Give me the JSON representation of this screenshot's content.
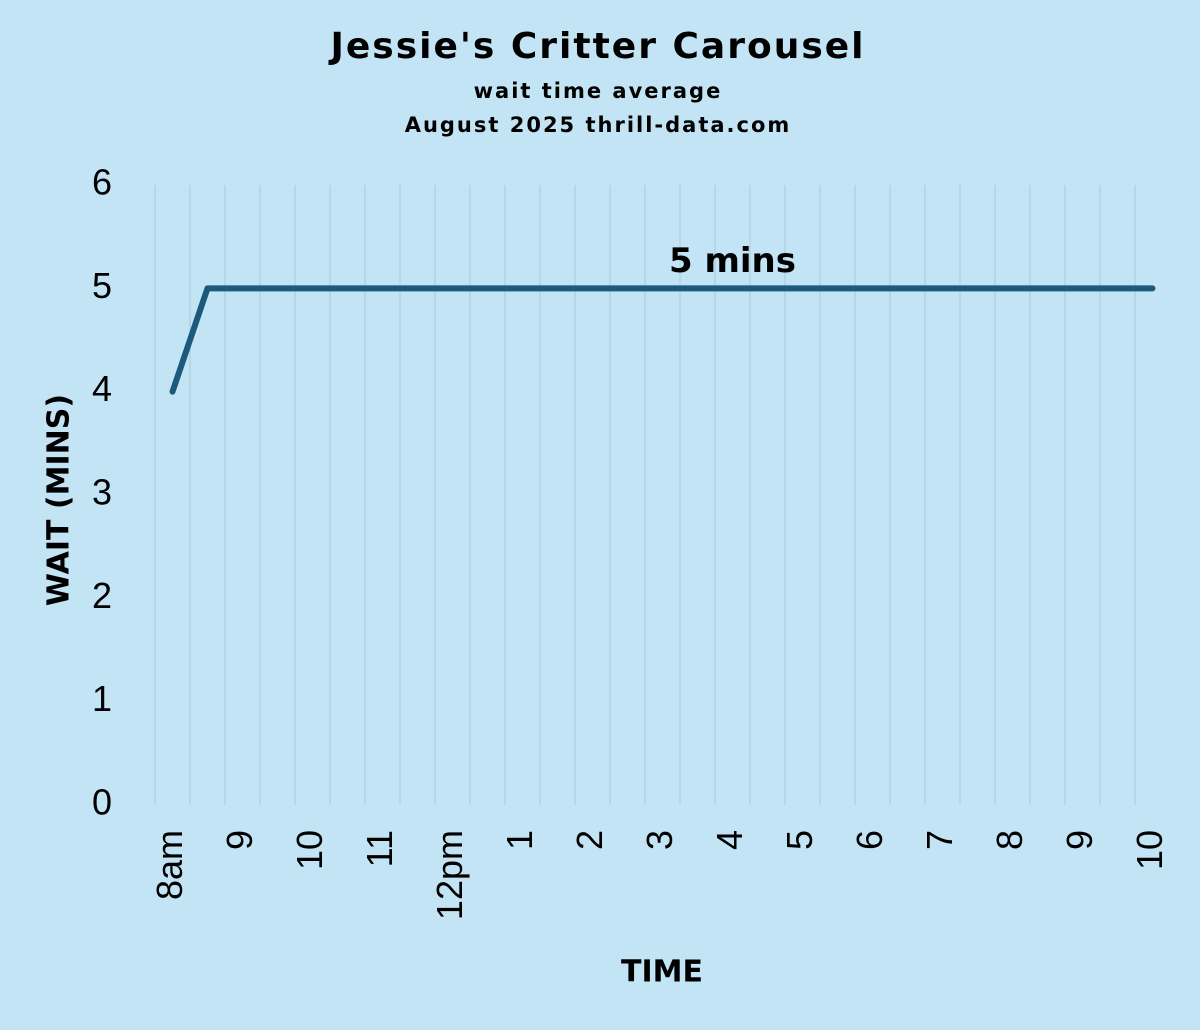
{
  "chart_data": {
    "type": "line",
    "title": "Jessie's Critter Carousel",
    "subtitle": [
      "wait time average",
      "August 2025 thrill-data.com"
    ],
    "x_label": "TIME",
    "y_label": "WAIT (MINS)",
    "categories": [
      "8am",
      null,
      "9",
      null,
      "10",
      null,
      "11",
      null,
      "12pm",
      null,
      "1",
      null,
      "2",
      null,
      "3",
      null,
      "4",
      null,
      "5",
      null,
      "6",
      null,
      "7",
      null,
      "8",
      null,
      "9",
      null,
      "10"
    ],
    "series": [
      {
        "name": "wait time average",
        "color": "#1b5a7b",
        "values": [
          4,
          5,
          5,
          5,
          5,
          5,
          5,
          5,
          5,
          5,
          5,
          5,
          5,
          5,
          5,
          5,
          5,
          5,
          5,
          5,
          5,
          5,
          5,
          5,
          5,
          5,
          5,
          5,
          5
        ],
        "value_labels": [
          null,
          null,
          null,
          null,
          null,
          null,
          null,
          null,
          null,
          null,
          null,
          null,
          null,
          null,
          null,
          null,
          "5 mins",
          null,
          null,
          null,
          null,
          null,
          null,
          null,
          null,
          null,
          null,
          null,
          null
        ]
      }
    ],
    "ylim": [
      0,
      6
    ],
    "yticks": [
      0,
      1,
      2,
      3,
      4,
      5,
      6
    ],
    "grid": true
  }
}
